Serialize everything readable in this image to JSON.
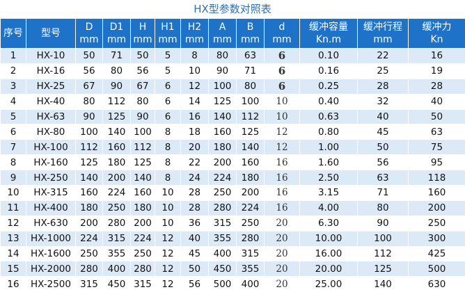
{
  "title": "HX型参数对照表",
  "table": {
    "header": [
      {
        "name": "序号"
      },
      {
        "name": "型号"
      },
      {
        "name": "D",
        "unit": "mm"
      },
      {
        "name": "D1",
        "unit": "mm"
      },
      {
        "name": "H",
        "unit": "mm"
      },
      {
        "name": "H1",
        "unit": "mm"
      },
      {
        "name": "H2",
        "unit": "mm"
      },
      {
        "name": "A",
        "unit": "mm"
      },
      {
        "name": "B",
        "unit": "mm"
      },
      {
        "name": "d",
        "unit": "mm"
      },
      {
        "name": "缓冲容量",
        "unit": "Kn.m"
      },
      {
        "name": "缓冲行程",
        "unit": "mm"
      },
      {
        "name": "缓冲力",
        "unit": "Kn"
      }
    ],
    "rows": [
      [
        "1",
        "HX-10",
        "50",
        "71",
        "50",
        "5",
        "8",
        "80",
        "63",
        "6",
        "0.10",
        "22",
        "16"
      ],
      [
        "2",
        "HX-16",
        "56",
        "80",
        "56",
        "5",
        "10",
        "90",
        "71",
        "6",
        "0.16",
        "25",
        "19"
      ],
      [
        "3",
        "HX-25",
        "67",
        "90",
        "67",
        "6",
        "12",
        "100",
        "80",
        "6",
        "0.25",
        "28",
        "28"
      ],
      [
        "4",
        "HX-40",
        "80",
        "112",
        "80",
        "6",
        "14",
        "125",
        "100",
        "10",
        "0.40",
        "32",
        "40"
      ],
      [
        "5",
        "HX-63",
        "90",
        "125",
        "90",
        "6",
        "16",
        "140",
        "112",
        "10",
        "0.63",
        "40",
        "50"
      ],
      [
        "6",
        "HX-80",
        "100",
        "140",
        "100",
        "8",
        "18",
        "160",
        "125",
        "12",
        "0.80",
        "45",
        "63"
      ],
      [
        "7",
        "HX-100",
        "112",
        "160",
        "112",
        "8",
        "20",
        "180",
        "140",
        "12",
        "1.00",
        "50",
        "75"
      ],
      [
        "8",
        "HX-160",
        "125",
        "180",
        "125",
        "8",
        "22",
        "200",
        "160",
        "16",
        "1.60",
        "56",
        "95"
      ],
      [
        "9",
        "HX-250",
        "140",
        "200",
        "140",
        "8",
        "24",
        "224",
        "180",
        "16",
        "2.50",
        "63",
        "118"
      ],
      [
        "10",
        "HX-315",
        "160",
        "224",
        "160",
        "10",
        "28",
        "250",
        "200",
        "16",
        "3.15",
        "71",
        "160"
      ],
      [
        "11",
        "HX-400",
        "180",
        "250",
        "180",
        "10",
        "28",
        "280",
        "224",
        "16",
        "4.00",
        "80",
        "200"
      ],
      [
        "12",
        "HX-630",
        "200",
        "280",
        "200",
        "10",
        "36",
        "315",
        "250",
        "20",
        "6.30",
        "90",
        "250"
      ],
      [
        "13",
        "HX-1000",
        "224",
        "315",
        "224",
        "12",
        "40",
        "355",
        "280",
        "20",
        "10.00",
        "100",
        "300"
      ],
      [
        "14",
        "HX-1600",
        "250",
        "355",
        "250",
        "12",
        "45",
        "400",
        "315",
        "20",
        "16.00",
        "112",
        "425"
      ],
      [
        "15",
        "HX-2000",
        "280",
        "400",
        "280",
        "12",
        "50",
        "450",
        "355",
        "20",
        "20.00",
        "125",
        "500"
      ],
      [
        "16",
        "HX-2500",
        "315",
        "450",
        "315",
        "12",
        "56",
        "500",
        "400",
        "20",
        "25.00",
        "140",
        "630"
      ]
    ]
  }
}
